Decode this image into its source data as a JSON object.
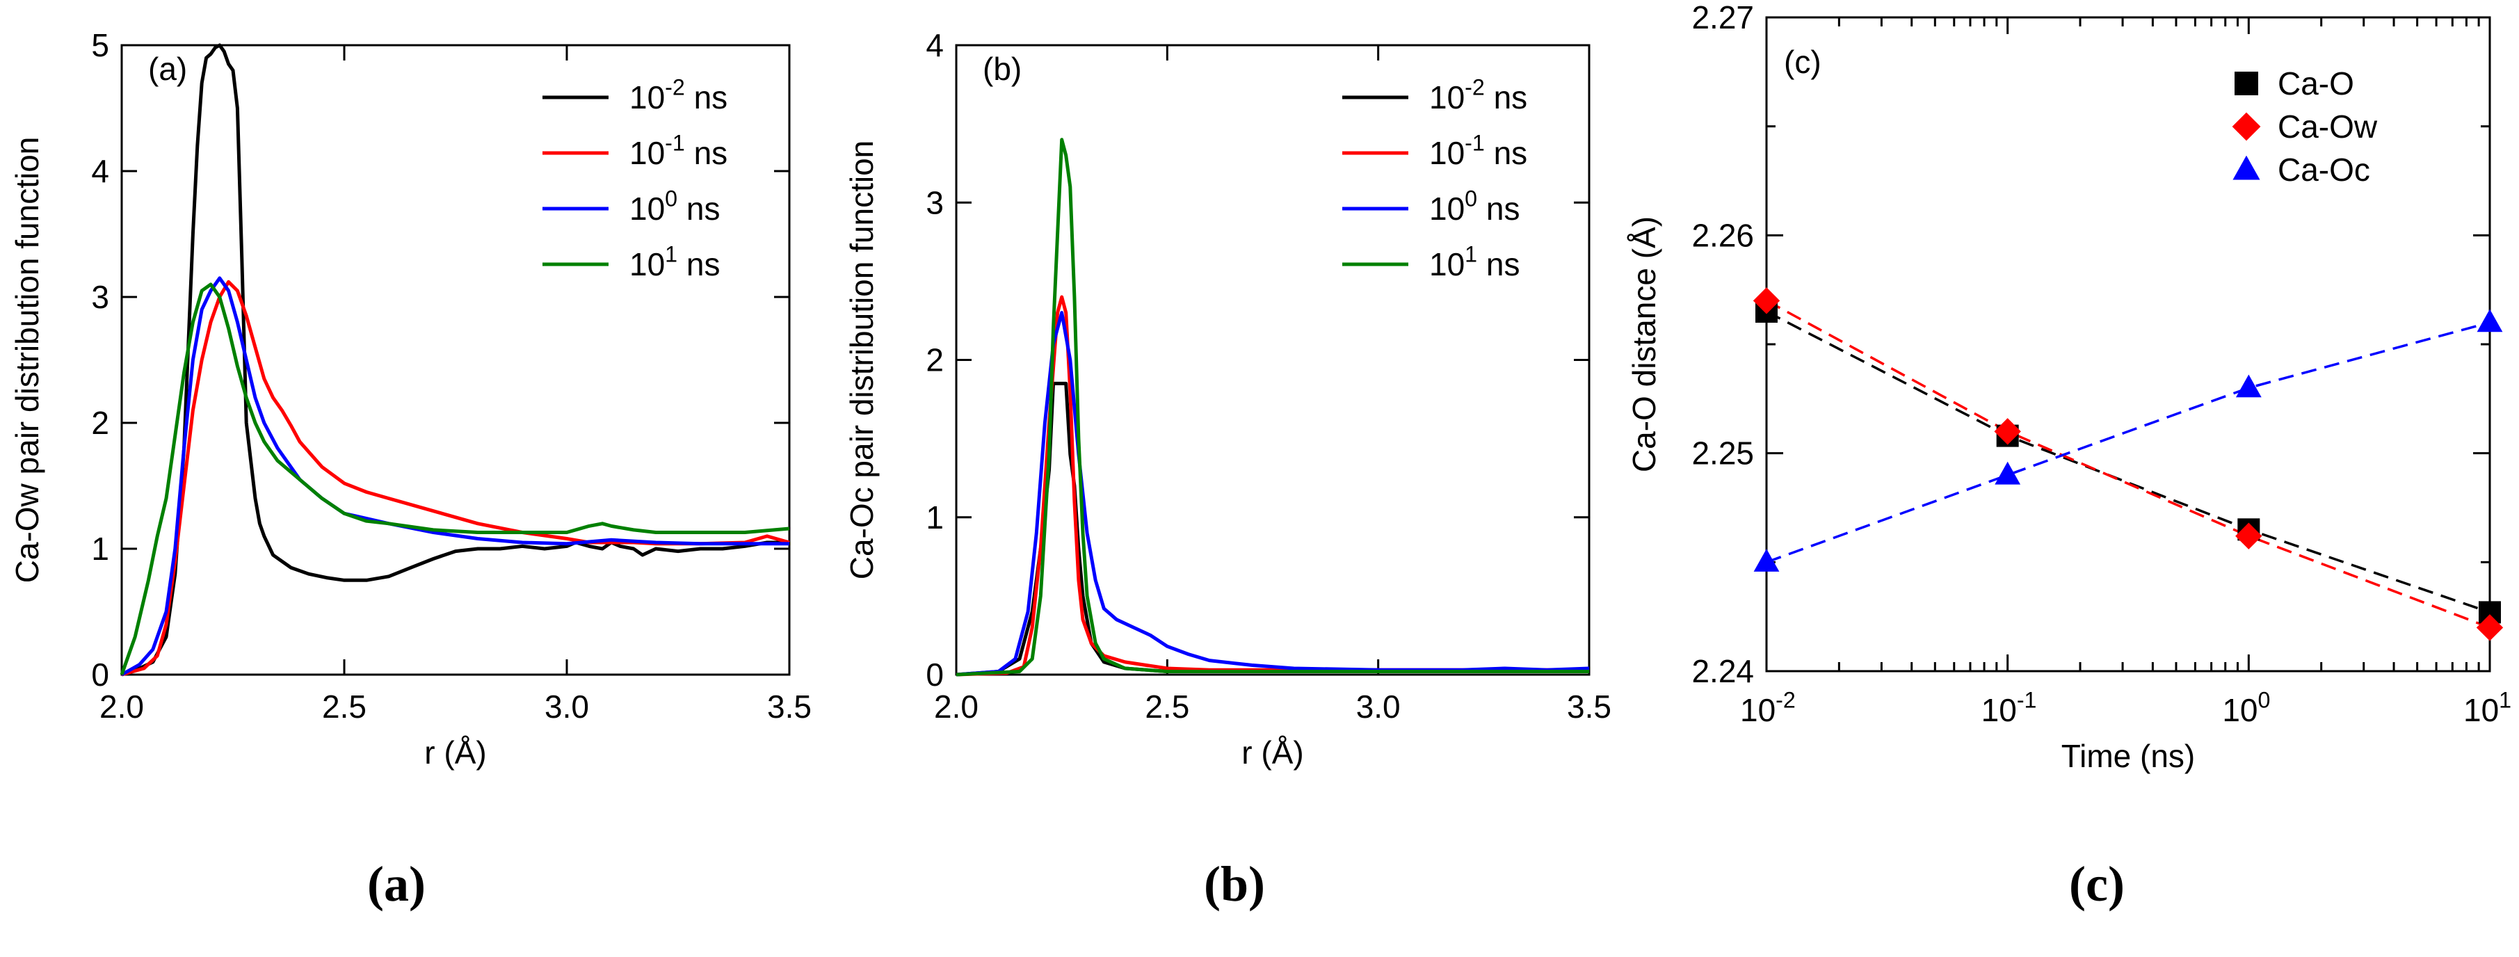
{
  "chart_data": [
    {
      "panel": "(a)",
      "caption": "(a)",
      "type": "line",
      "xlabel": "r (Å)",
      "ylabel": "Ca-Ow pair distribution function",
      "xlim": [
        2.0,
        3.5
      ],
      "ylim": [
        0,
        5
      ],
      "xticks": [
        "2.0",
        "2.5",
        "3.0",
        "3.5"
      ],
      "yticks": [
        "0",
        "1",
        "2",
        "3",
        "4",
        "5"
      ],
      "legend_position": "top-right",
      "series": [
        {
          "name_base": "10",
          "name_exp": "-2",
          "name_unit": " ns",
          "color": "#000000",
          "x": [
            2.0,
            2.04,
            2.07,
            2.1,
            2.12,
            2.14,
            2.16,
            2.17,
            2.18,
            2.19,
            2.2,
            2.21,
            2.22,
            2.23,
            2.24,
            2.25,
            2.26,
            2.27,
            2.28,
            2.29,
            2.3,
            2.31,
            2.32,
            2.34,
            2.36,
            2.38,
            2.42,
            2.46,
            2.5,
            2.55,
            2.6,
            2.65,
            2.7,
            2.75,
            2.8,
            2.85,
            2.9,
            2.95,
            3.0,
            3.02,
            3.05,
            3.08,
            3.1,
            3.12,
            3.15,
            3.17,
            3.2,
            3.25,
            3.3,
            3.35,
            3.4,
            3.45,
            3.5
          ],
          "y": [
            0.0,
            0.05,
            0.1,
            0.3,
            0.8,
            1.8,
            3.5,
            4.2,
            4.7,
            4.9,
            4.93,
            4.98,
            5.0,
            4.95,
            4.85,
            4.8,
            4.5,
            3.3,
            2.0,
            1.7,
            1.4,
            1.2,
            1.1,
            0.95,
            0.9,
            0.85,
            0.8,
            0.77,
            0.75,
            0.75,
            0.78,
            0.85,
            0.92,
            0.98,
            1.0,
            1.0,
            1.02,
            1.0,
            1.02,
            1.05,
            1.02,
            1.0,
            1.05,
            1.02,
            1.0,
            0.95,
            1.0,
            0.98,
            1.0,
            1.0,
            1.02,
            1.05,
            1.05
          ]
        },
        {
          "name_base": "10",
          "name_exp": "-1",
          "name_unit": " ns",
          "color": "#ff0000",
          "x": [
            2.0,
            2.05,
            2.08,
            2.1,
            2.12,
            2.14,
            2.16,
            2.18,
            2.2,
            2.22,
            2.24,
            2.26,
            2.28,
            2.3,
            2.32,
            2.34,
            2.36,
            2.38,
            2.4,
            2.45,
            2.5,
            2.55,
            2.6,
            2.7,
            2.8,
            2.9,
            3.0,
            3.05,
            3.1,
            3.15,
            3.2,
            3.3,
            3.4,
            3.45,
            3.5
          ],
          "y": [
            0.0,
            0.05,
            0.15,
            0.4,
            0.9,
            1.5,
            2.1,
            2.5,
            2.8,
            3.0,
            3.12,
            3.05,
            2.85,
            2.6,
            2.35,
            2.2,
            2.1,
            1.98,
            1.85,
            1.65,
            1.52,
            1.45,
            1.4,
            1.3,
            1.2,
            1.13,
            1.08,
            1.05,
            1.05,
            1.05,
            1.04,
            1.04,
            1.05,
            1.1,
            1.05
          ]
        },
        {
          "name_base": "10",
          "name_exp": "0",
          "name_unit": " ns",
          "color": "#0000ff",
          "x": [
            2.0,
            2.04,
            2.07,
            2.1,
            2.12,
            2.14,
            2.16,
            2.18,
            2.2,
            2.22,
            2.24,
            2.26,
            2.28,
            2.3,
            2.32,
            2.35,
            2.4,
            2.45,
            2.5,
            2.6,
            2.7,
            2.8,
            2.9,
            3.0,
            3.1,
            3.2,
            3.3,
            3.4,
            3.5
          ],
          "y": [
            0.0,
            0.08,
            0.2,
            0.5,
            1.0,
            1.8,
            2.5,
            2.9,
            3.05,
            3.15,
            3.05,
            2.8,
            2.5,
            2.2,
            2.0,
            1.8,
            1.55,
            1.4,
            1.28,
            1.2,
            1.13,
            1.08,
            1.05,
            1.04,
            1.07,
            1.05,
            1.04,
            1.04,
            1.04
          ]
        },
        {
          "name_base": "10",
          "name_exp": "1",
          "name_unit": " ns",
          "color": "#008000",
          "x": [
            2.0,
            2.03,
            2.06,
            2.08,
            2.1,
            2.12,
            2.14,
            2.16,
            2.18,
            2.2,
            2.22,
            2.24,
            2.26,
            2.28,
            2.3,
            2.32,
            2.35,
            2.4,
            2.45,
            2.5,
            2.55,
            2.6,
            2.7,
            2.8,
            2.9,
            3.0,
            3.05,
            3.08,
            3.1,
            3.15,
            3.2,
            3.3,
            3.4,
            3.5
          ],
          "y": [
            0.0,
            0.3,
            0.75,
            1.1,
            1.4,
            1.9,
            2.4,
            2.8,
            3.05,
            3.1,
            3.0,
            2.75,
            2.45,
            2.2,
            2.0,
            1.85,
            1.7,
            1.55,
            1.4,
            1.28,
            1.22,
            1.2,
            1.15,
            1.13,
            1.13,
            1.13,
            1.18,
            1.2,
            1.18,
            1.15,
            1.13,
            1.13,
            1.13,
            1.16
          ]
        }
      ]
    },
    {
      "panel": "(b)",
      "caption": "(b)",
      "type": "line",
      "xlabel": "r (Å)",
      "ylabel": "Ca-Oc pair distribution function",
      "xlim": [
        2.0,
        3.5
      ],
      "ylim": [
        0,
        4
      ],
      "xticks": [
        "2.0",
        "2.5",
        "3.0",
        "3.5"
      ],
      "yticks": [
        "0",
        "1",
        "2",
        "3",
        "4"
      ],
      "legend_position": "top-right",
      "series": [
        {
          "name_base": "10",
          "name_exp": "-2",
          "name_unit": " ns",
          "color": "#000000",
          "x": [
            2.0,
            2.1,
            2.15,
            2.18,
            2.2,
            2.22,
            2.23,
            2.24,
            2.25,
            2.26,
            2.27,
            2.28,
            2.29,
            2.3,
            2.32,
            2.35,
            2.4,
            2.5,
            2.6,
            3.0,
            3.5
          ],
          "y": [
            0.0,
            0.02,
            0.1,
            0.4,
            0.8,
            1.3,
            1.85,
            1.85,
            1.85,
            1.85,
            1.4,
            1.2,
            0.8,
            0.5,
            0.2,
            0.08,
            0.04,
            0.02,
            0.02,
            0.02,
            0.02
          ]
        },
        {
          "name_base": "10",
          "name_exp": "-1",
          "name_unit": " ns",
          "color": "#ff0000",
          "x": [
            2.0,
            2.12,
            2.16,
            2.18,
            2.2,
            2.22,
            2.24,
            2.25,
            2.26,
            2.27,
            2.28,
            2.29,
            2.3,
            2.32,
            2.35,
            2.4,
            2.5,
            2.6,
            3.0,
            3.5
          ],
          "y": [
            0.0,
            0.01,
            0.05,
            0.3,
            0.8,
            1.6,
            2.3,
            2.4,
            2.3,
            1.8,
            1.1,
            0.6,
            0.35,
            0.2,
            0.12,
            0.08,
            0.04,
            0.03,
            0.03,
            0.03
          ]
        },
        {
          "name_base": "10",
          "name_exp": "0",
          "name_unit": " ns",
          "color": "#0000ff",
          "x": [
            2.0,
            2.1,
            2.14,
            2.17,
            2.19,
            2.21,
            2.23,
            2.25,
            2.27,
            2.29,
            2.31,
            2.33,
            2.35,
            2.38,
            2.42,
            2.46,
            2.5,
            2.55,
            2.6,
            2.7,
            2.8,
            3.0,
            3.2,
            3.3,
            3.4,
            3.5
          ],
          "y": [
            0.0,
            0.02,
            0.1,
            0.4,
            0.9,
            1.6,
            2.1,
            2.3,
            2.0,
            1.4,
            0.9,
            0.6,
            0.42,
            0.35,
            0.3,
            0.25,
            0.18,
            0.13,
            0.09,
            0.06,
            0.04,
            0.03,
            0.03,
            0.04,
            0.03,
            0.04
          ]
        },
        {
          "name_base": "10",
          "name_exp": "1",
          "name_unit": " ns",
          "color": "#008000",
          "x": [
            2.0,
            2.15,
            2.18,
            2.2,
            2.22,
            2.23,
            2.24,
            2.25,
            2.26,
            2.27,
            2.28,
            2.29,
            2.3,
            2.31,
            2.33,
            2.35,
            2.4,
            2.5,
            3.0,
            3.5
          ],
          "y": [
            0.0,
            0.02,
            0.1,
            0.5,
            1.4,
            2.2,
            2.8,
            3.4,
            3.3,
            3.1,
            2.4,
            1.5,
            0.9,
            0.5,
            0.2,
            0.1,
            0.04,
            0.02,
            0.02,
            0.02
          ]
        }
      ]
    },
    {
      "panel": "(c)",
      "caption": "(c)",
      "type": "scatter",
      "xlabel": "Time (ns)",
      "ylabel": "Ca-O distance (Å)",
      "xscale": "log",
      "xlim": [
        0.01,
        10
      ],
      "ylim": [
        2.24,
        2.27
      ],
      "xticks": [
        {
          "base": "10",
          "exp": "-2"
        },
        {
          "base": "10",
          "exp": "-1"
        },
        {
          "base": "10",
          "exp": "0"
        },
        {
          "base": "10",
          "exp": "1"
        }
      ],
      "yticks": [
        "2.24",
        "2.25",
        "2.26",
        "2.27"
      ],
      "legend_position": "top-right",
      "x": [
        0.01,
        0.1,
        1,
        10
      ],
      "series": [
        {
          "name": "Ca-O",
          "marker": "square",
          "color": "#000000",
          "values": [
            2.2565,
            2.2508,
            2.2465,
            2.2427
          ]
        },
        {
          "name": "Ca-Ow",
          "marker": "diamond",
          "color": "#ff0000",
          "values": [
            2.257,
            2.251,
            2.2462,
            2.242
          ]
        },
        {
          "name": "Ca-Oc",
          "marker": "triangle",
          "color": "#0000ff",
          "values": [
            2.245,
            2.249,
            2.253,
            2.256
          ]
        }
      ]
    }
  ]
}
